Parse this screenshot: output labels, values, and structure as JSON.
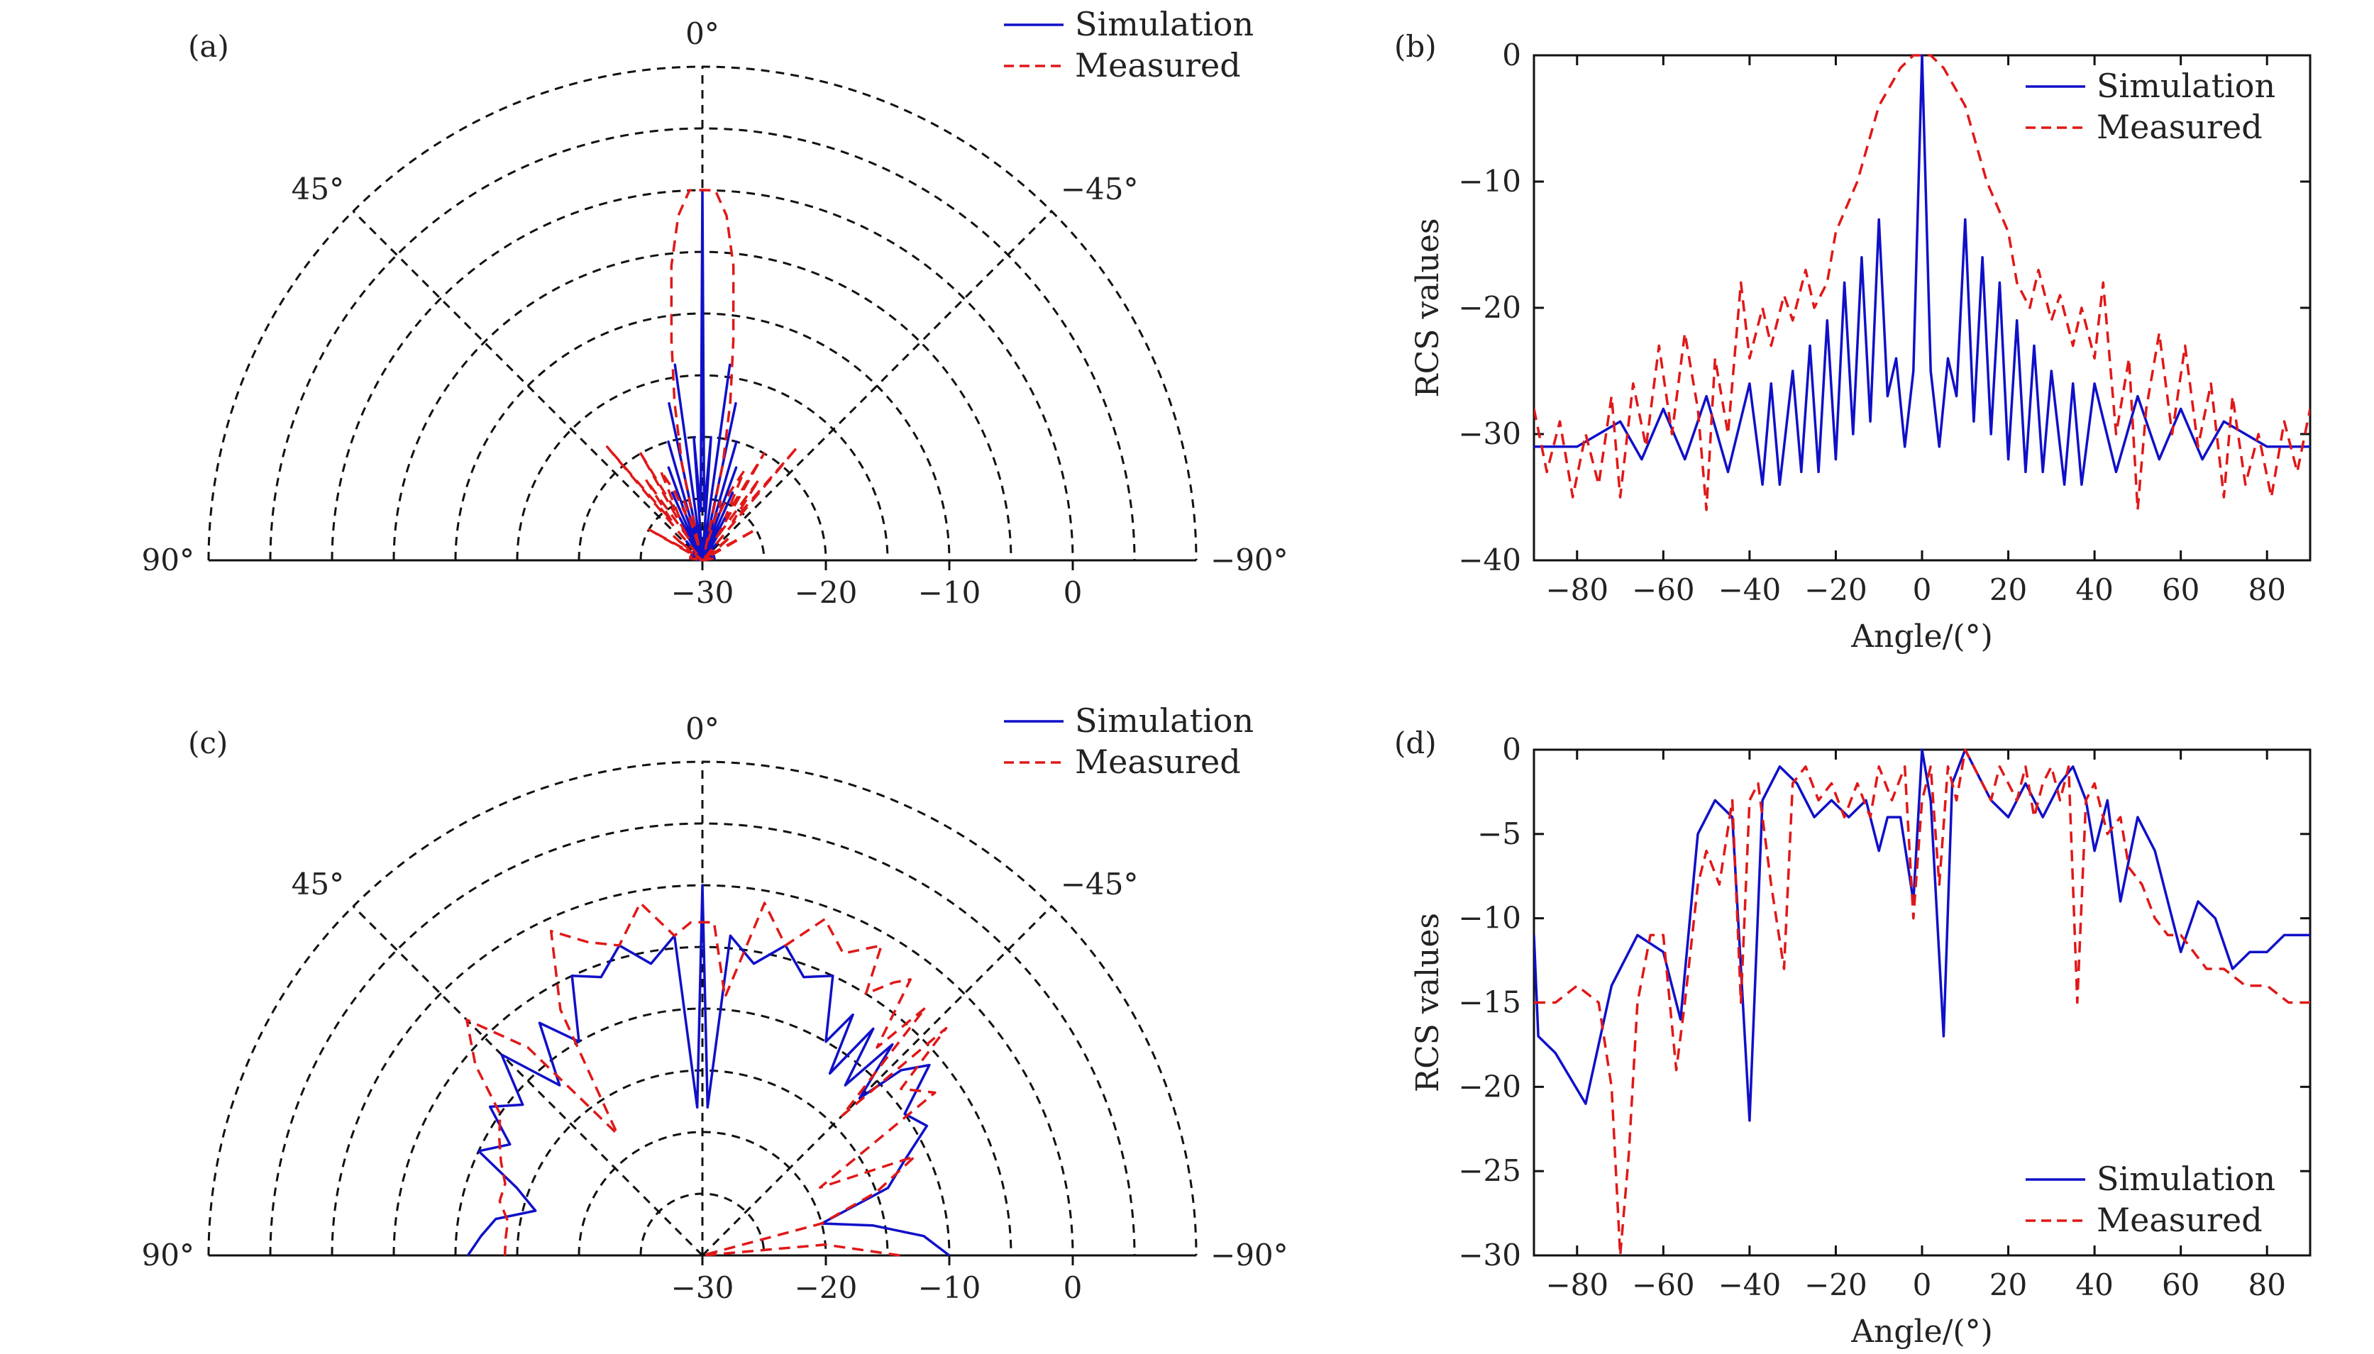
{
  "colors": {
    "simulation": "#1010c8",
    "measured": "#e01818",
    "grid": "#111111"
  },
  "chart_data": [
    {
      "id": "a",
      "type": "polar",
      "panel_label": "(a)",
      "angle_ticks": [
        {
          "angle": 0,
          "label": "0°"
        },
        {
          "angle": 45,
          "label": "45°"
        },
        {
          "angle": -45,
          "label": "−45°"
        },
        {
          "angle": 90,
          "label": "90°"
        },
        {
          "angle": -90,
          "label": "−90°"
        }
      ],
      "radial_range": [
        -30,
        10
      ],
      "radial_ticks": [
        {
          "value": -30,
          "label": "−30"
        },
        {
          "value": -20,
          "label": "−20"
        },
        {
          "value": -10,
          "label": "−10"
        },
        {
          "value": 0,
          "label": "0"
        }
      ],
      "grid": true,
      "legend": {
        "position": "top-right",
        "entries": [
          "Simulation",
          "Measured"
        ]
      },
      "series": [
        {
          "name": "Simulation",
          "style": "solid",
          "angles": [
            -90,
            -80,
            -75,
            -70,
            -65,
            -60,
            -55,
            -50,
            -45,
            -40,
            -35,
            -32,
            -30,
            -28,
            -26,
            -24,
            -22,
            -20,
            -18,
            -16,
            -14,
            -12,
            -10,
            -8,
            -6,
            -4,
            -2,
            0,
            2,
            4,
            6,
            8,
            10,
            12,
            14,
            16,
            18,
            20,
            22,
            24,
            26,
            28,
            30,
            32,
            35,
            40,
            45,
            50,
            55,
            60,
            65,
            70,
            75,
            80,
            90
          ],
          "values": [
            -30,
            -29,
            -30,
            -29,
            -30,
            -29,
            -30,
            -29,
            -30,
            -28,
            -30,
            -27,
            -30,
            -26,
            -30,
            -24,
            -30,
            -22,
            -30,
            -20,
            -30,
            -17,
            -30,
            -14,
            -30,
            -20,
            -26,
            0,
            -26,
            -20,
            -30,
            -14,
            -30,
            -17,
            -30,
            -20,
            -30,
            -22,
            -30,
            -24,
            -30,
            -26,
            -30,
            -27,
            -30,
            -28,
            -30,
            -29,
            -30,
            -29,
            -30,
            -29,
            -30,
            -29,
            -30
          ]
        },
        {
          "name": "Measured",
          "style": "dashed",
          "angles": [
            -90,
            -80,
            -70,
            -65,
            -60,
            -55,
            -50,
            -45,
            -40,
            -38,
            -35,
            -32,
            -30,
            -28,
            -25,
            -22,
            -20,
            -17,
            -15,
            -12,
            -10,
            -8,
            -6,
            -4,
            -2,
            0,
            2,
            4,
            6,
            8,
            10,
            12,
            15,
            17,
            20,
            22,
            25,
            28,
            30,
            32,
            35,
            38,
            40,
            45,
            50,
            55,
            60,
            65,
            70,
            80,
            90
          ],
          "values": [
            -30,
            -29,
            -29,
            -30,
            -25,
            -29,
            -27,
            -30,
            -18,
            -26,
            -22,
            -28,
            -20,
            -26,
            -22,
            -24,
            -26,
            -25,
            -29,
            -22,
            -17,
            -12,
            -6,
            -2,
            0,
            0,
            0,
            -2,
            -6,
            -12,
            -17,
            -22,
            -29,
            -25,
            -26,
            -24,
            -22,
            -26,
            -20,
            -28,
            -22,
            -26,
            -18,
            -30,
            -27,
            -29,
            -25,
            -30,
            -29,
            -29,
            -30
          ]
        }
      ]
    },
    {
      "id": "b",
      "type": "line",
      "panel_label": "(b)",
      "xlabel": "Angle/(°)",
      "ylabel": "RCS values",
      "xlim": [
        -90,
        90
      ],
      "ylim": [
        -40,
        0
      ],
      "xticks": [
        -80,
        -60,
        -40,
        -20,
        0,
        20,
        40,
        60,
        80
      ],
      "yticks": [
        0,
        -10,
        -20,
        -30,
        -40
      ],
      "grid": false,
      "legend": {
        "position": "top-right",
        "entries": [
          "Simulation",
          "Measured"
        ]
      },
      "series": [
        {
          "name": "Simulation",
          "style": "solid",
          "x": [
            -90,
            -80,
            -75,
            -70,
            -65,
            -60,
            -55,
            -50,
            -45,
            -40,
            -37,
            -35,
            -33,
            -30,
            -28,
            -26,
            -24,
            -22,
            -20,
            -18,
            -16,
            -14,
            -12,
            -10,
            -8,
            -6,
            -4,
            -2,
            0,
            2,
            4,
            6,
            8,
            10,
            12,
            14,
            16,
            18,
            20,
            22,
            24,
            26,
            28,
            30,
            33,
            35,
            37,
            40,
            45,
            50,
            55,
            60,
            65,
            70,
            75,
            80,
            90
          ],
          "y": [
            -31,
            -31,
            -30,
            -29,
            -32,
            -28,
            -32,
            -27,
            -33,
            -26,
            -34,
            -26,
            -34,
            -25,
            -33,
            -23,
            -33,
            -21,
            -32,
            -18,
            -30,
            -16,
            -29,
            -13,
            -27,
            -24,
            -31,
            -25,
            0,
            -25,
            -31,
            -24,
            -27,
            -13,
            -29,
            -16,
            -30,
            -18,
            -32,
            -21,
            -33,
            -23,
            -33,
            -25,
            -34,
            -26,
            -34,
            -26,
            -33,
            -27,
            -32,
            -28,
            -32,
            -29,
            -30,
            -31,
            -31
          ]
        },
        {
          "name": "Measured",
          "style": "dashed",
          "x": [
            -90,
            -87,
            -84,
            -81,
            -78,
            -75,
            -72,
            -70,
            -67,
            -64,
            -61,
            -58,
            -55,
            -52,
            -50,
            -48,
            -45,
            -42,
            -40,
            -37,
            -35,
            -32,
            -30,
            -27,
            -25,
            -22,
            -20,
            -15,
            -10,
            -5,
            -2,
            0,
            2,
            5,
            10,
            15,
            20,
            22,
            25,
            27,
            30,
            32,
            35,
            37,
            40,
            42,
            45,
            48,
            50,
            52,
            55,
            58,
            61,
            64,
            67,
            70,
            72,
            75,
            78,
            81,
            84,
            87,
            90
          ],
          "y": [
            -28,
            -33,
            -29,
            -35,
            -30,
            -34,
            -27,
            -35,
            -26,
            -31,
            -23,
            -30,
            -22,
            -28,
            -36,
            -24,
            -30,
            -18,
            -24,
            -20,
            -23,
            -19,
            -21,
            -17,
            -20,
            -18,
            -14,
            -10,
            -4,
            -1,
            0,
            0,
            0,
            -1,
            -4,
            -10,
            -14,
            -18,
            -20,
            -17,
            -21,
            -19,
            -23,
            -20,
            -24,
            -18,
            -30,
            -24,
            -36,
            -28,
            -22,
            -30,
            -23,
            -31,
            -26,
            -35,
            -27,
            -34,
            -30,
            -35,
            -29,
            -33,
            -28
          ]
        }
      ]
    },
    {
      "id": "c",
      "type": "polar",
      "panel_label": "(c)",
      "angle_ticks": [
        {
          "angle": 0,
          "label": "0°"
        },
        {
          "angle": 45,
          "label": "45°"
        },
        {
          "angle": -45,
          "label": "−45°"
        },
        {
          "angle": 90,
          "label": "90°"
        },
        {
          "angle": -90,
          "label": "−90°"
        }
      ],
      "radial_range": [
        -30,
        10
      ],
      "radial_ticks": [
        {
          "value": -30,
          "label": "−30"
        },
        {
          "value": -20,
          "label": "−20"
        },
        {
          "value": -10,
          "label": "−10"
        },
        {
          "value": 0,
          "label": "0"
        }
      ],
      "grid": true,
      "legend": {
        "position": "top-right",
        "entries": [
          "Simulation",
          "Measured"
        ]
      },
      "series": [
        {
          "name": "Simulation",
          "style": "solid",
          "angles": [
            -90,
            -85,
            -80,
            -75,
            -70,
            -65,
            -60,
            -55,
            -50,
            -47,
            -45,
            -42,
            -40,
            -37,
            -35,
            -32,
            -30,
            -25,
            -20,
            -15,
            -10,
            -5,
            -2,
            0,
            2,
            5,
            10,
            15,
            20,
            25,
            30,
            35,
            40,
            45,
            50,
            55,
            60,
            65,
            70,
            75,
            80,
            85,
            90
          ],
          "values": [
            -10,
            -12,
            -16,
            -20,
            -14,
            -12,
            -9,
            -10,
            -6,
            -8,
            -12,
            -7,
            -12,
            -7,
            -12,
            -7,
            -10,
            -5,
            -6,
            -4,
            -6,
            -4,
            -18,
            0,
            -18,
            -4,
            -6,
            -4,
            -6,
            -5,
            -10,
            -7,
            -12,
            -7,
            -11,
            -9,
            -12,
            -10,
            -14,
            -16,
            -13,
            -12,
            -11
          ]
        },
        {
          "name": "Measured",
          "style": "dashed",
          "angles": [
            -90,
            -85,
            -80,
            -75,
            -70,
            -65,
            -60,
            -55,
            -50,
            -47,
            -45,
            -42,
            -40,
            -37,
            -35,
            -32,
            -30,
            -25,
            -20,
            -15,
            -10,
            -5,
            -2,
            0,
            2,
            5,
            10,
            15,
            20,
            25,
            30,
            35,
            40,
            45,
            50,
            55,
            60,
            65,
            70,
            75,
            80,
            85,
            90
          ],
          "values": [
            -14,
            -20,
            -30,
            -20,
            -15,
            -11,
            -19,
            -7,
            -9,
            -3,
            -14,
            -3,
            -8,
            -2,
            -3,
            -5,
            -1,
            -3,
            -1,
            -4,
            -1,
            -9,
            -3,
            -3,
            -3,
            -4,
            -1,
            -4,
            -3,
            -1,
            -7,
            -18,
            -8,
            -3,
            -6,
            -10,
            -11,
            -12,
            -13,
            -13,
            -14,
            -14,
            -14
          ]
        }
      ]
    },
    {
      "id": "d",
      "type": "line",
      "panel_label": "(d)",
      "xlabel": "Angle/(°)",
      "ylabel": "RCS values",
      "xlim": [
        -90,
        90
      ],
      "ylim": [
        -30,
        0
      ],
      "xticks": [
        -80,
        -60,
        -40,
        -20,
        0,
        20,
        40,
        60,
        80
      ],
      "yticks": [
        0,
        -5,
        -10,
        -15,
        -20,
        -25,
        -30
      ],
      "grid": false,
      "legend": {
        "position": "bottom-right",
        "entries": [
          "Simulation",
          "Measured"
        ]
      },
      "series": [
        {
          "name": "Simulation",
          "style": "solid",
          "x": [
            -90,
            -89,
            -85,
            -78,
            -72,
            -66,
            -60,
            -56,
            -52,
            -48,
            -44,
            -40,
            -37,
            -33,
            -29,
            -25,
            -21,
            -17,
            -13,
            -10,
            -8,
            -5,
            -2,
            0,
            2,
            5,
            7,
            10,
            12,
            16,
            20,
            24,
            28,
            32,
            35,
            38,
            40,
            43,
            46,
            50,
            54,
            57,
            60,
            64,
            68,
            72,
            76,
            80,
            84,
            90
          ],
          "y": [
            -11,
            -17,
            -18,
            -21,
            -14,
            -11,
            -12,
            -16,
            -5,
            -3,
            -4,
            -22,
            -3,
            -1,
            -2,
            -4,
            -3,
            -4,
            -3,
            -6,
            -4,
            -4,
            -9,
            0,
            -3,
            -17,
            -2,
            0,
            -1,
            -3,
            -4,
            -2,
            -4,
            -2,
            -1,
            -3,
            -6,
            -3,
            -9,
            -4,
            -6,
            -9,
            -12,
            -9,
            -10,
            -13,
            -12,
            -12,
            -11,
            -11
          ]
        },
        {
          "name": "Measured",
          "style": "dashed",
          "x": [
            -90,
            -85,
            -80,
            -75,
            -72,
            -70,
            -68,
            -66,
            -63,
            -60,
            -57,
            -55,
            -52,
            -50,
            -47,
            -44,
            -42,
            -40,
            -38,
            -35,
            -32,
            -30,
            -27,
            -24,
            -21,
            -18,
            -15,
            -12,
            -10,
            -7,
            -4,
            -2,
            0,
            2,
            4,
            6,
            8,
            10,
            12,
            14,
            16,
            18,
            20,
            22,
            24,
            26,
            28,
            30,
            32,
            34,
            36,
            38,
            40,
            43,
            46,
            48,
            51,
            54,
            57,
            60,
            63,
            66,
            70,
            75,
            80,
            85,
            90
          ],
          "y": [
            -15,
            -15,
            -14,
            -15,
            -20,
            -30,
            -24,
            -15,
            -11,
            -11,
            -19,
            -15,
            -8,
            -6,
            -8,
            -3,
            -15,
            -3,
            -2,
            -8,
            -13,
            -2,
            -1,
            -3,
            -2,
            -4,
            -2,
            -4,
            -1,
            -3,
            -1,
            -10,
            -3,
            -1,
            -8,
            -1,
            -3,
            0,
            -1,
            -2,
            -3,
            -1,
            -2,
            -3,
            -1,
            -4,
            -2,
            -1,
            -3,
            -1,
            -15,
            -3,
            -2,
            -5,
            -4,
            -7,
            -8,
            -10,
            -11,
            -11,
            -12,
            -13,
            -13,
            -14,
            -14,
            -15,
            -15
          ]
        }
      ]
    }
  ]
}
